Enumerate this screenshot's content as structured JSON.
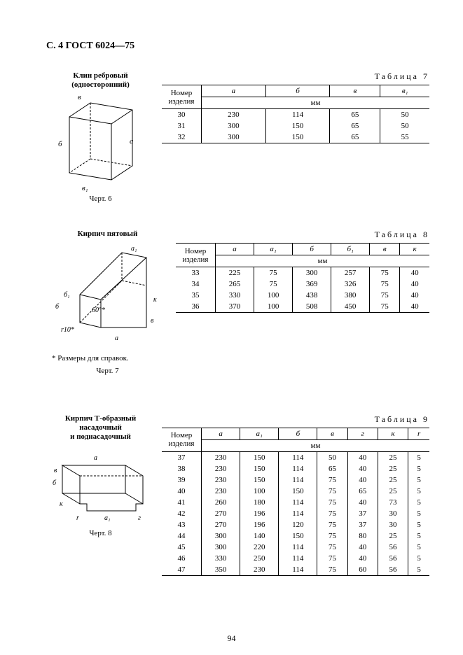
{
  "page_header": "С. 4 ГОСТ 6024—75",
  "page_number": "94",
  "footnote": "* Размеры для справок.",
  "fig6": {
    "title_l1": "Клин ребровый",
    "title_l2": "(односторонний)",
    "caption": "Черт. 6",
    "labels": {
      "a": "a",
      "b": "б",
      "v": "в",
      "v1": "в₁"
    }
  },
  "fig7": {
    "title": "Кирпич пятовый",
    "caption": "Черт. 7",
    "labels": {
      "a": "a",
      "a1": "a₁",
      "b": "б",
      "b1": "б₁",
      "v": "в",
      "k": "к",
      "angle": "60°*",
      "r": "r10*"
    }
  },
  "fig8": {
    "title_l1": "Кирпич Т-образный насадочный",
    "title_l2": "и поднасадочный",
    "caption": "Черт. 8",
    "labels": {
      "a": "a",
      "a1": "a₁",
      "b": "б",
      "v": "в",
      "g": "г",
      "k": "к",
      "r": "r"
    }
  },
  "table7": {
    "label": "Таблица 7",
    "col_id": "Номер изделия",
    "headers": [
      "а",
      "б",
      "в",
      "в₁"
    ],
    "unit": "мм",
    "rows": [
      [
        "30",
        "230",
        "114",
        "65",
        "50"
      ],
      [
        "31",
        "300",
        "150",
        "65",
        "50"
      ],
      [
        "32",
        "300",
        "150",
        "65",
        "55"
      ]
    ]
  },
  "table8": {
    "label": "Таблица 8",
    "col_id": "Номер изделия",
    "headers": [
      "а",
      "а₁",
      "б",
      "б₁",
      "в",
      "к"
    ],
    "unit": "мм",
    "rows": [
      [
        "33",
        "225",
        "75",
        "300",
        "257",
        "75",
        "40"
      ],
      [
        "34",
        "265",
        "75",
        "369",
        "326",
        "75",
        "40"
      ],
      [
        "35",
        "330",
        "100",
        "438",
        "380",
        "75",
        "40"
      ],
      [
        "36",
        "370",
        "100",
        "508",
        "450",
        "75",
        "40"
      ]
    ]
  },
  "table9": {
    "label": "Таблица 9",
    "col_id": "Номер изделия",
    "headers": [
      "а",
      "а₁",
      "б",
      "в",
      "г",
      "к",
      "r"
    ],
    "unit": "мм",
    "rows": [
      [
        "37",
        "230",
        "150",
        "114",
        "50",
        "40",
        "25",
        "5"
      ],
      [
        "38",
        "230",
        "150",
        "114",
        "65",
        "40",
        "25",
        "5"
      ],
      [
        "39",
        "230",
        "150",
        "114",
        "75",
        "40",
        "25",
        "5"
      ],
      [
        "40",
        "230",
        "100",
        "150",
        "75",
        "65",
        "25",
        "5"
      ],
      [
        "41",
        "260",
        "180",
        "114",
        "75",
        "40",
        "73",
        "5"
      ],
      [
        "42",
        "270",
        "196",
        "114",
        "75",
        "37",
        "30",
        "5"
      ],
      [
        "43",
        "270",
        "196",
        "120",
        "75",
        "37",
        "30",
        "5"
      ],
      [
        "44",
        "300",
        "140",
        "150",
        "75",
        "80",
        "25",
        "5"
      ],
      [
        "45",
        "300",
        "220",
        "114",
        "75",
        "40",
        "56",
        "5"
      ],
      [
        "46",
        "330",
        "250",
        "114",
        "75",
        "40",
        "56",
        "5"
      ],
      [
        "47",
        "350",
        "230",
        "114",
        "75",
        "60",
        "56",
        "5"
      ]
    ]
  }
}
